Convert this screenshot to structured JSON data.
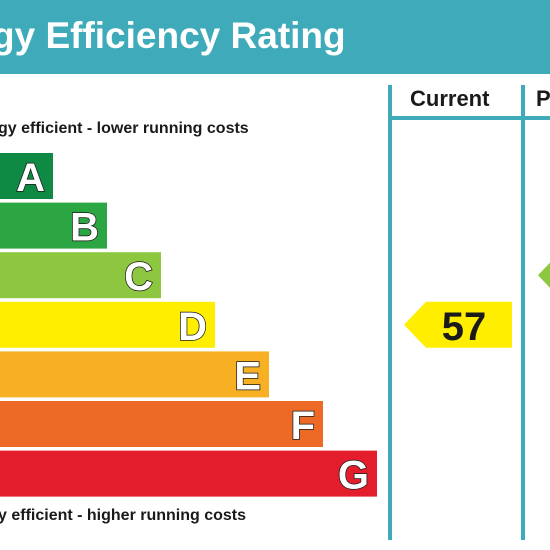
{
  "header": {
    "title": "gy Efficiency Rating"
  },
  "captions": {
    "top": "gy efficient - lower running costs",
    "bottom": "y efficient - higher running costs"
  },
  "columns": {
    "current": "Current",
    "potential": "P"
  },
  "colors": {
    "title_bg": "#3faab9",
    "A": "#0f8a45",
    "B": "#2ba642",
    "C": "#8dc63f",
    "D": "#ffee00",
    "E": "#f7b024",
    "F": "#ec6a26",
    "G": "#e31d2b"
  },
  "chart_data": {
    "type": "bar",
    "categories": [
      "A",
      "B",
      "C",
      "D",
      "E",
      "F",
      "G"
    ],
    "values": [
      1,
      2,
      3,
      4,
      5,
      6,
      7
    ],
    "current": {
      "value": 57,
      "band": "D"
    },
    "potential": {
      "band": "C"
    }
  }
}
